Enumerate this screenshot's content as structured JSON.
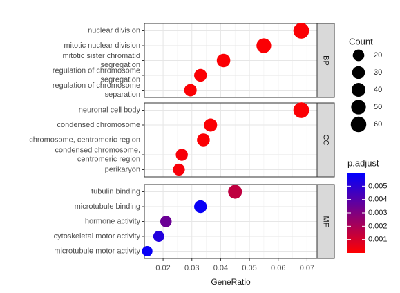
{
  "chart_data": {
    "type": "scatter",
    "xlabel": "GeneRatio",
    "xlim": [
      0.0135,
      0.0735
    ],
    "x_ticks": [
      0.02,
      0.03,
      0.04,
      0.05,
      0.06,
      0.07
    ],
    "x_tick_labels": [
      "0.02",
      "0.03",
      "0.04",
      "0.05",
      "0.06",
      "0.07"
    ],
    "grid": true,
    "panels": [
      {
        "strip": "BP",
        "terms": [
          {
            "lines": [
              "nuclear division"
            ],
            "x": 0.068,
            "count": 62,
            "padj": 0.0001
          },
          {
            "lines": [
              "mitotic nuclear division"
            ],
            "x": 0.055,
            "count": 50,
            "padj": 0.0001
          },
          {
            "lines": [
              "mitotic sister chromatid",
              "segregation"
            ],
            "x": 0.041,
            "count": 37,
            "padj": 0.0001
          },
          {
            "lines": [
              "regulation of chromosome",
              "segregation"
            ],
            "x": 0.033,
            "count": 30,
            "padj": 0.0001
          },
          {
            "lines": [
              "regulation of chromosome",
              "separation"
            ],
            "x": 0.0295,
            "count": 27,
            "padj": 0.0001
          }
        ]
      },
      {
        "strip": "CC",
        "terms": [
          {
            "lines": [
              "neuronal cell body"
            ],
            "x": 0.068,
            "count": 62,
            "padj": 0.0001
          },
          {
            "lines": [
              "condensed chromosome"
            ],
            "x": 0.0365,
            "count": 33,
            "padj": 0.0001
          },
          {
            "lines": [
              "chromosome, centromeric region"
            ],
            "x": 0.034,
            "count": 31,
            "padj": 0.0001
          },
          {
            "lines": [
              "condensed chromosome,",
              "centromeric region"
            ],
            "x": 0.0265,
            "count": 24,
            "padj": 0.0002
          },
          {
            "lines": [
              "perikaryon"
            ],
            "x": 0.0255,
            "count": 23,
            "padj": 0.0002
          }
        ]
      },
      {
        "strip": "MF",
        "terms": [
          {
            "lines": [
              "tubulin binding"
            ],
            "x": 0.045,
            "count": 41,
            "padj": 0.0015
          },
          {
            "lines": [
              "microtubule binding"
            ],
            "x": 0.033,
            "count": 30,
            "padj": 0.0058
          },
          {
            "lines": [
              "hormone activity"
            ],
            "x": 0.021,
            "count": 19,
            "padj": 0.0035
          },
          {
            "lines": [
              "cytoskeletal motor activity"
            ],
            "x": 0.0185,
            "count": 17,
            "padj": 0.0052
          },
          {
            "lines": [
              "microtubule motor activity"
            ],
            "x": 0.0145,
            "count": 13,
            "padj": 0.0058
          }
        ]
      }
    ],
    "size_legend": {
      "title": "Count",
      "values": [
        20,
        30,
        40,
        50,
        60
      ],
      "labels": [
        "20",
        "30",
        "40",
        "50",
        "60"
      ]
    },
    "color_legend": {
      "title": "p.adjust",
      "ticks": [
        0.001,
        0.002,
        0.003,
        0.004,
        0.005
      ],
      "tick_labels": [
        "0.001",
        "0.002",
        "0.003",
        "0.004",
        "0.005"
      ],
      "range": [
        0.0,
        0.006
      ],
      "low_color": "#ff0000",
      "high_color": "#0000ff"
    }
  }
}
